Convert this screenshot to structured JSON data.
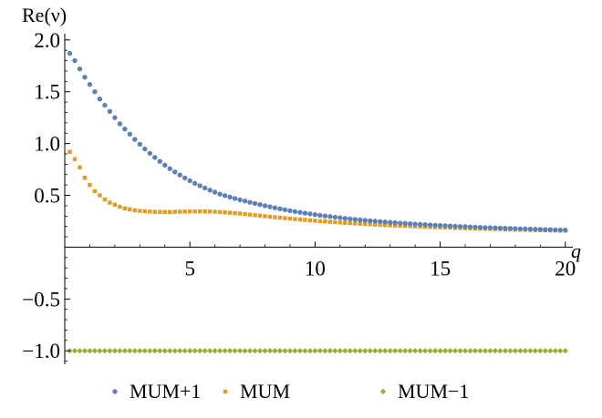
{
  "chart_data": {
    "type": "scatter",
    "title": "",
    "xlabel": "q",
    "ylabel": "Re(ν)",
    "xlim": [
      0,
      20.3
    ],
    "ylim": [
      -1.13,
      2.06
    ],
    "grid": false,
    "legend_position": "bottom",
    "x_ticks": [
      {
        "value": 5,
        "label": "5"
      },
      {
        "value": 10,
        "label": "10"
      },
      {
        "value": 15,
        "label": "15"
      },
      {
        "value": 20,
        "label": "20"
      }
    ],
    "y_ticks": [
      {
        "value": 2.0,
        "label": "2.0"
      },
      {
        "value": 1.5,
        "label": "1.5"
      },
      {
        "value": 1.0,
        "label": "1.0"
      },
      {
        "value": 0.5,
        "label": "0.5"
      },
      {
        "value": -0.5,
        "label": "−0.5"
      },
      {
        "value": -1.0,
        "label": "−1.0"
      }
    ],
    "x": [
      0.2,
      0.4,
      0.6,
      0.8,
      1.0,
      1.2,
      1.4,
      1.6,
      1.8,
      2.0,
      2.2,
      2.4,
      2.6,
      2.8,
      3.0,
      3.2,
      3.4,
      3.6,
      3.8,
      4.0,
      4.2,
      4.4,
      4.6,
      4.8,
      5.0,
      5.2,
      5.4,
      5.6,
      5.8,
      6.0,
      6.2,
      6.4,
      6.6,
      6.8,
      7.0,
      7.2,
      7.4,
      7.6,
      7.8,
      8.0,
      8.2,
      8.4,
      8.6,
      8.8,
      9.0,
      9.2,
      9.4,
      9.6,
      9.8,
      10.0,
      10.2,
      10.4,
      10.6,
      10.8,
      11.0,
      11.2,
      11.4,
      11.6,
      11.8,
      12.0,
      12.2,
      12.4,
      12.6,
      12.8,
      13.0,
      13.2,
      13.4,
      13.6,
      13.8,
      14.0,
      14.2,
      14.4,
      14.6,
      14.8,
      15.0,
      15.2,
      15.4,
      15.6,
      15.8,
      16.0,
      16.2,
      16.4,
      16.6,
      16.8,
      17.0,
      17.2,
      17.4,
      17.6,
      17.8,
      18.0,
      18.2,
      18.4,
      18.6,
      18.8,
      19.0,
      19.2,
      19.4,
      19.6,
      19.8,
      20.0
    ],
    "series": [
      {
        "name": "MUM+1",
        "color": "#5e81b5",
        "marker": "circle",
        "values": [
          1.87,
          1.8,
          1.72,
          1.64,
          1.57,
          1.5,
          1.43,
          1.37,
          1.31,
          1.25,
          1.19,
          1.14,
          1.09,
          1.04,
          0.993,
          0.948,
          0.906,
          0.866,
          0.828,
          0.792,
          0.758,
          0.726,
          0.696,
          0.668,
          0.641,
          0.616,
          0.593,
          0.571,
          0.55,
          0.531,
          0.512,
          0.497,
          0.483,
          0.47,
          0.457,
          0.445,
          0.433,
          0.422,
          0.411,
          0.4,
          0.39,
          0.38,
          0.37,
          0.361,
          0.352,
          0.344,
          0.336,
          0.328,
          0.321,
          0.314,
          0.307,
          0.301,
          0.295,
          0.289,
          0.284,
          0.278,
          0.273,
          0.268,
          0.264,
          0.259,
          0.255,
          0.251,
          0.247,
          0.243,
          0.239,
          0.236,
          0.232,
          0.229,
          0.226,
          0.223,
          0.22,
          0.217,
          0.214,
          0.212,
          0.209,
          0.207,
          0.204,
          0.202,
          0.2,
          0.198,
          0.195,
          0.193,
          0.191,
          0.189,
          0.188,
          0.186,
          0.184,
          0.182,
          0.181,
          0.179,
          0.177,
          0.176,
          0.174,
          0.173,
          0.171,
          0.17,
          0.169,
          0.167,
          0.166,
          0.165
        ]
      },
      {
        "name": "MUM",
        "color": "#e19c24",
        "marker": "square",
        "values": [
          0.92,
          0.85,
          0.77,
          0.67,
          0.6,
          0.54,
          0.5,
          0.46,
          0.43,
          0.41,
          0.39,
          0.374,
          0.364,
          0.356,
          0.35,
          0.346,
          0.343,
          0.341,
          0.34,
          0.34,
          0.34,
          0.341,
          0.342,
          0.343,
          0.344,
          0.345,
          0.345,
          0.345,
          0.344,
          0.342,
          0.339,
          0.336,
          0.332,
          0.328,
          0.324,
          0.319,
          0.314,
          0.309,
          0.304,
          0.299,
          0.294,
          0.289,
          0.284,
          0.28,
          0.275,
          0.271,
          0.267,
          0.263,
          0.259,
          0.255,
          0.251,
          0.248,
          0.244,
          0.241,
          0.238,
          0.235,
          0.232,
          0.229,
          0.226,
          0.223,
          0.221,
          0.218,
          0.216,
          0.213,
          0.211,
          0.209,
          0.207,
          0.205,
          0.203,
          0.201,
          0.199,
          0.197,
          0.195,
          0.193,
          0.191,
          0.19,
          0.188,
          0.186,
          0.185,
          0.183,
          0.182,
          0.18,
          0.179,
          0.178,
          0.176,
          0.175,
          0.174,
          0.172,
          0.171,
          0.17,
          0.169,
          0.168,
          0.166,
          0.165,
          0.164,
          0.163,
          0.162,
          0.161,
          0.16,
          0.159
        ]
      },
      {
        "name": "MUM−1",
        "color": "#8fb032",
        "marker": "diamond",
        "values": [
          -1,
          -1,
          -1,
          -1,
          -1,
          -1,
          -1,
          -1,
          -1,
          -1,
          -1,
          -1,
          -1,
          -1,
          -1,
          -1,
          -1,
          -1,
          -1,
          -1,
          -1,
          -1,
          -1,
          -1,
          -1,
          -1,
          -1,
          -1,
          -1,
          -1,
          -1,
          -1,
          -1,
          -1,
          -1,
          -1,
          -1,
          -1,
          -1,
          -1,
          -1,
          -1,
          -1,
          -1,
          -1,
          -1,
          -1,
          -1,
          -1,
          -1,
          -1,
          -1,
          -1,
          -1,
          -1,
          -1,
          -1,
          -1,
          -1,
          -1,
          -1,
          -1,
          -1,
          -1,
          -1,
          -1,
          -1,
          -1,
          -1,
          -1,
          -1,
          -1,
          -1,
          -1,
          -1,
          -1,
          -1,
          -1,
          -1,
          -1,
          -1,
          -1,
          -1,
          -1,
          -1,
          -1,
          -1,
          -1,
          -1,
          -1,
          -1,
          -1,
          -1,
          -1,
          -1,
          -1,
          -1,
          -1,
          -1,
          -1
        ]
      }
    ]
  }
}
